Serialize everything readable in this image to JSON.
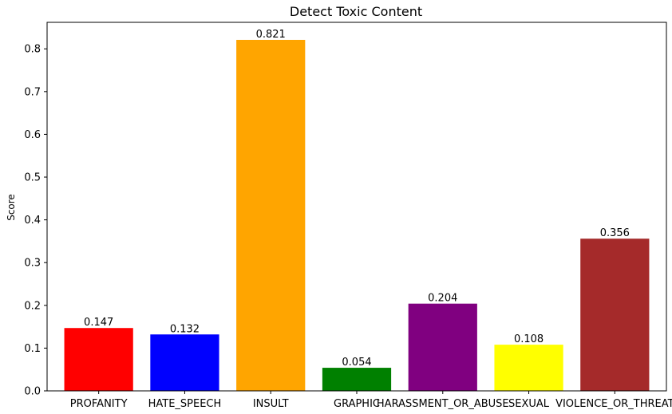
{
  "chart_data": {
    "type": "bar",
    "title": "Detect Toxic Content",
    "xlabel": "",
    "ylabel": "Score",
    "categories": [
      "PROFANITY",
      "HATE_SPEECH",
      "INSULT",
      "GRAPHIC",
      "HARASSMENT_OR_ABUSE",
      "SEXUAL",
      "VIOLENCE_OR_THREAT"
    ],
    "values": [
      0.147,
      0.132,
      0.821,
      0.054,
      0.204,
      0.108,
      0.356
    ],
    "value_labels": [
      "0.147",
      "0.132",
      "0.821",
      "0.054",
      "0.204",
      "0.108",
      "0.356"
    ],
    "colors": [
      "#ff0000",
      "#0000ff",
      "#ffa500",
      "#008000",
      "#800080",
      "#ffff00",
      "#a52a2a"
    ],
    "ylim": [
      0,
      0.862
    ],
    "yticks": [
      0.0,
      0.1,
      0.2,
      0.3,
      0.4,
      0.5,
      0.6,
      0.7,
      0.8
    ],
    "ytick_labels": [
      "0.0",
      "0.1",
      "0.2",
      "0.3",
      "0.4",
      "0.5",
      "0.6",
      "0.7",
      "0.8"
    ],
    "grid": false,
    "legend": "none"
  }
}
